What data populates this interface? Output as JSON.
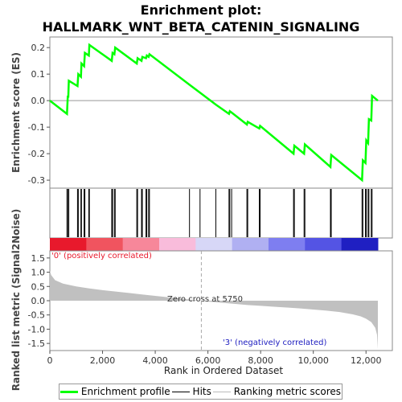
{
  "chart_data": {
    "type": "line",
    "title_line1": "Enrichment plot:",
    "title_line2": "HALLMARK_WNT_BETA_CATENIN_SIGNALING",
    "es_panel": {
      "ylabel": "Enrichment score (ES)",
      "ylim": [
        -0.33,
        0.24
      ],
      "yticks": [
        -0.3,
        -0.2,
        -0.1,
        0.0,
        0.1,
        0.2
      ],
      "ytick_labels": [
        "-0.3",
        "-0.2",
        "-0.1",
        "0.0",
        "0.1",
        "0.2"
      ],
      "line_color": "#00ff00",
      "profile": [
        [
          0,
          0.0
        ],
        [
          650,
          -0.05
        ],
        [
          680,
          0.015
        ],
        [
          700,
          0.015
        ],
        [
          720,
          0.075
        ],
        [
          1050,
          0.055
        ],
        [
          1080,
          0.1
        ],
        [
          1180,
          0.09
        ],
        [
          1200,
          0.14
        ],
        [
          1300,
          0.13
        ],
        [
          1330,
          0.18
        ],
        [
          1480,
          0.17
        ],
        [
          1500,
          0.21
        ],
        [
          2350,
          0.15
        ],
        [
          2380,
          0.18
        ],
        [
          2450,
          0.175
        ],
        [
          2480,
          0.2
        ],
        [
          3300,
          0.14
        ],
        [
          3330,
          0.16
        ],
        [
          3480,
          0.15
        ],
        [
          3510,
          0.165
        ],
        [
          3650,
          0.16
        ],
        [
          3680,
          0.17
        ],
        [
          3750,
          0.165
        ],
        [
          3780,
          0.175
        ],
        [
          5300,
          0.06
        ],
        [
          5700,
          0.03
        ],
        [
          6300,
          -0.015
        ],
        [
          6800,
          -0.05
        ],
        [
          6830,
          -0.04
        ],
        [
          6900,
          -0.045
        ],
        [
          7480,
          -0.09
        ],
        [
          7510,
          -0.08
        ],
        [
          7950,
          -0.105
        ],
        [
          7980,
          -0.095
        ],
        [
          9250,
          -0.2
        ],
        [
          9280,
          -0.17
        ],
        [
          9650,
          -0.2
        ],
        [
          9680,
          -0.165
        ],
        [
          10650,
          -0.25
        ],
        [
          10680,
          -0.205
        ],
        [
          11850,
          -0.3
        ],
        [
          11880,
          -0.225
        ],
        [
          11980,
          -0.235
        ],
        [
          12010,
          -0.15
        ],
        [
          12080,
          -0.16
        ],
        [
          12110,
          -0.07
        ],
        [
          12200,
          -0.075
        ],
        [
          12230,
          0.018
        ],
        [
          12450,
          0.0
        ]
      ]
    },
    "hits": [
      650,
      680,
      720,
      1050,
      1080,
      1180,
      1200,
      1300,
      1330,
      1480,
      1500,
      2350,
      2380,
      2450,
      2480,
      3300,
      3330,
      3480,
      3510,
      3650,
      3680,
      3750,
      3780,
      5300,
      5700,
      6300,
      6800,
      6830,
      6900,
      7480,
      7510,
      7950,
      7980,
      9250,
      9280,
      9650,
      9680,
      10650,
      10680,
      11850,
      11880,
      11980,
      12010,
      12080,
      12110,
      12200,
      12230
    ],
    "gradient_colors": [
      "#e8192c",
      "#f0545f",
      "#f7879a",
      "#f9bcdb",
      "#d7d7f7",
      "#b0b0f2",
      "#7e7ef0",
      "#5454e4",
      "#1f1fc2"
    ],
    "metric_panel": {
      "ylabel": "Ranked list metric (Signal2Noise)",
      "ylim": [
        -1.75,
        1.75
      ],
      "yticks": [
        -1.5,
        -1.0,
        -0.5,
        0.0,
        0.5,
        1.0,
        1.5
      ],
      "ytick_labels": [
        "-1.5",
        "-1.0",
        "-0.5",
        "0.0",
        "0.5",
        "1.0",
        "1.5"
      ],
      "fill_color": "#c0c0c0",
      "curve": [
        [
          0,
          1.05
        ],
        [
          50,
          0.9
        ],
        [
          200,
          0.72
        ],
        [
          500,
          0.6
        ],
        [
          1000,
          0.5
        ],
        [
          1500,
          0.43
        ],
        [
          2000,
          0.37
        ],
        [
          2500,
          0.32
        ],
        [
          3000,
          0.27
        ],
        [
          3500,
          0.22
        ],
        [
          4000,
          0.17
        ],
        [
          4500,
          0.12
        ],
        [
          5000,
          0.07
        ],
        [
          5500,
          0.025
        ],
        [
          5750,
          0.0
        ],
        [
          6000,
          -0.03
        ],
        [
          6500,
          -0.07
        ],
        [
          7000,
          -0.11
        ],
        [
          7500,
          -0.15
        ],
        [
          8000,
          -0.18
        ],
        [
          8500,
          -0.21
        ],
        [
          9000,
          -0.24
        ],
        [
          9500,
          -0.27
        ],
        [
          10000,
          -0.31
        ],
        [
          10500,
          -0.35
        ],
        [
          11000,
          -0.4
        ],
        [
          11500,
          -0.48
        ],
        [
          11800,
          -0.55
        ],
        [
          12000,
          -0.63
        ],
        [
          12200,
          -0.75
        ],
        [
          12350,
          -0.95
        ],
        [
          12420,
          -1.2
        ],
        [
          12450,
          -1.7
        ]
      ],
      "pos_label": "'0' (positively correlated)",
      "neg_label": "'3' (negatively correlated)",
      "zero_cross_label": "Zero cross at 5750",
      "zero_cross": 5750
    },
    "xlabel": "Rank in Ordered Dataset",
    "xlim": [
      0,
      13000
    ],
    "xticks": [
      0,
      2000,
      4000,
      6000,
      8000,
      10000,
      12000
    ],
    "xtick_labels": [
      "0",
      "2,000",
      "4,000",
      "6,000",
      "8,000",
      "10,000",
      "12,000"
    ],
    "max_rank": 12450,
    "legend": {
      "enrichment": "Enrichment profile",
      "hits": "Hits",
      "ranking": "Ranking metric scores"
    }
  }
}
